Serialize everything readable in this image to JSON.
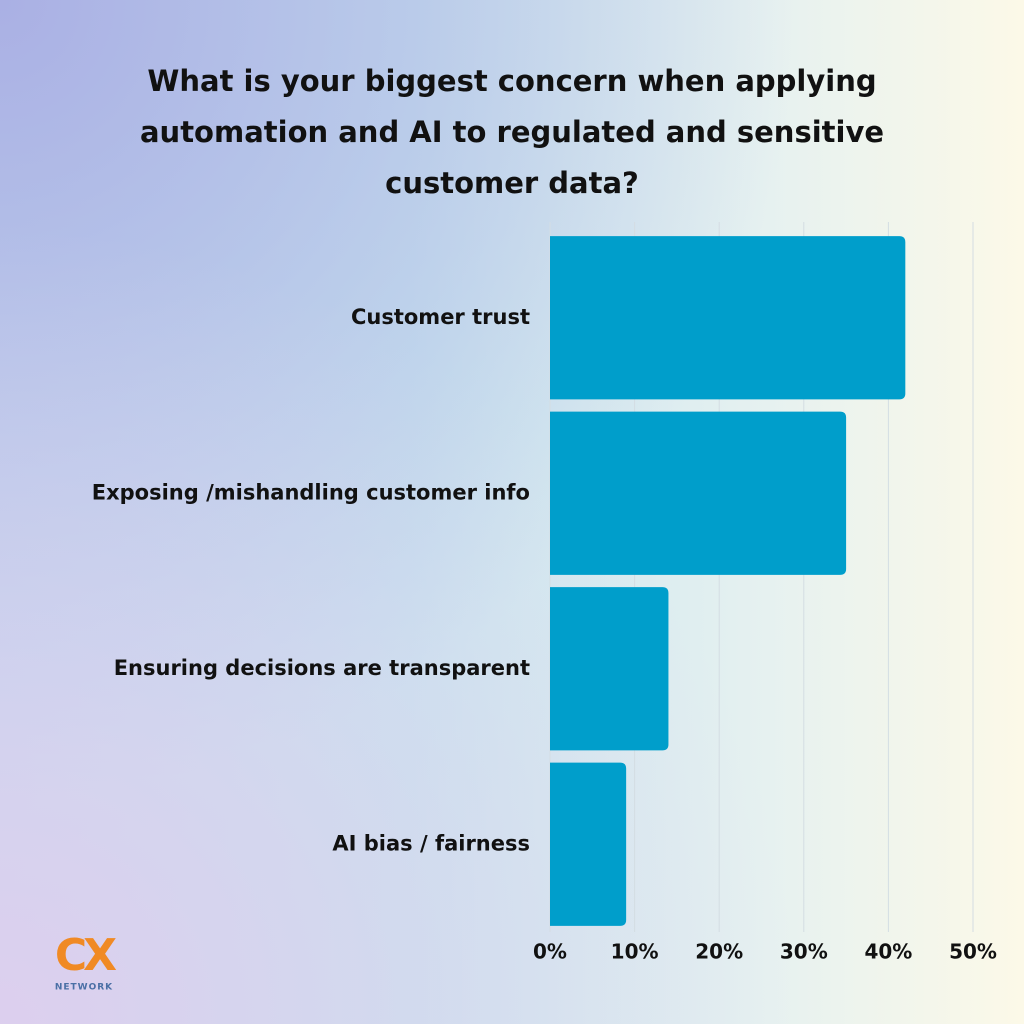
{
  "chart_data": {
    "type": "barh",
    "title": "What is your biggest concern when applying automation and AI to regulated and sensitive customer data?",
    "categories": [
      "Customer trust",
      "Exposing /mishandling customer info",
      "Ensuring decisions are transparent",
      "AI bias / fairness"
    ],
    "values": [
      42,
      35,
      14,
      9
    ],
    "color": "#009ecb",
    "xlim": [
      0,
      50
    ],
    "xticks": [
      {
        "value": 0,
        "label": "0%"
      },
      {
        "value": 10,
        "label": "10%"
      },
      {
        "value": 20,
        "label": "20%"
      },
      {
        "value": 30,
        "label": "30%"
      },
      {
        "value": 40,
        "label": "40%"
      },
      {
        "value": 50,
        "label": "50%"
      }
    ],
    "grid": true
  },
  "logo": {
    "text": "CX",
    "subtext": "NETWORK"
  }
}
